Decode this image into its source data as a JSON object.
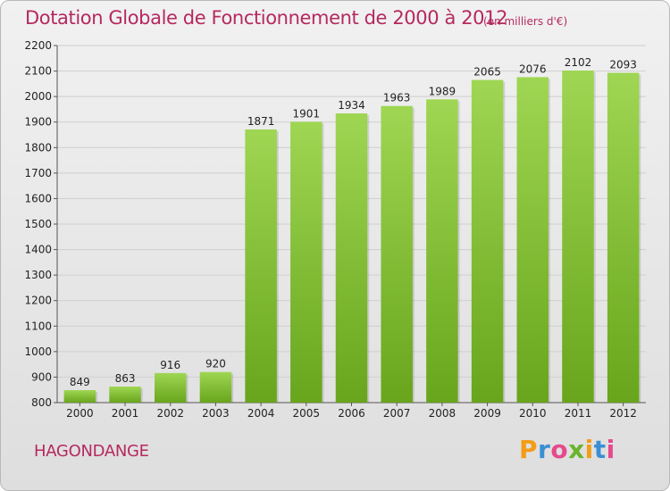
{
  "header": {
    "title": "Dotation Globale de Fonctionnement de 2000 à 2012",
    "subtitle": "(en milliers d'€)"
  },
  "footer": {
    "commune": "HAGONDANGE",
    "logo_letters": [
      "P",
      "r",
      "o",
      "x",
      "i",
      "t",
      "i"
    ],
    "logo_colors": [
      "#f39c18",
      "#3a8fd4",
      "#e54a8c",
      "#6ab42d",
      "#f39c18",
      "#3a8fd4",
      "#e54a8c"
    ]
  },
  "colors": {
    "bar_light": "#9fd653",
    "bar_dark": "#68a51c",
    "grid": "#cfcfcf",
    "accent": "#b5295f"
  },
  "chart_data": {
    "type": "bar",
    "title": "Dotation Globale de Fonctionnement de 2000 à 2012",
    "subtitle": "(en milliers d'€)",
    "categories": [
      "2000",
      "2001",
      "2002",
      "2003",
      "2004",
      "2005",
      "2006",
      "2007",
      "2008",
      "2009",
      "2010",
      "2011",
      "2012"
    ],
    "values": [
      849,
      863,
      916,
      920,
      1871,
      1901,
      1934,
      1963,
      1989,
      2065,
      2076,
      2102,
      2093
    ],
    "ylim": [
      800,
      2200
    ],
    "yticks": [
      800,
      900,
      1000,
      1100,
      1200,
      1300,
      1400,
      1500,
      1600,
      1700,
      1800,
      1900,
      2000,
      2100,
      2200
    ],
    "grid": true,
    "xlabel": "",
    "ylabel": ""
  }
}
